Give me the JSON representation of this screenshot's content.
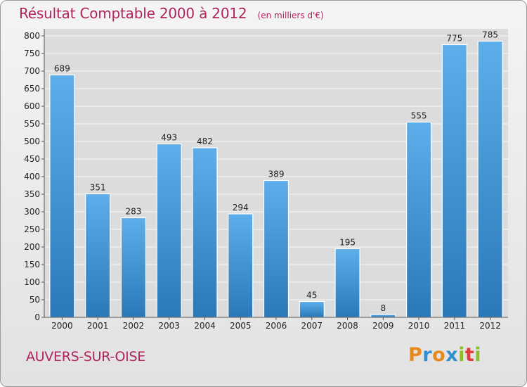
{
  "title": "Résultat Comptable 2000 à 2012",
  "subtitle": "(en milliers d'€)",
  "commune": "AUVERS-SUR-OISE",
  "logo": {
    "letters": [
      "P",
      "r",
      "o",
      "x",
      "i",
      "t",
      "i"
    ],
    "colors": [
      "#e8891c",
      "#2f8fcf",
      "#e8891c",
      "#2f8fcf",
      "#8cbf26",
      "#e03a3a",
      "#8cbf26"
    ]
  },
  "colors": {
    "bar_light": "#5daeea",
    "bar_dark": "#2a78b8",
    "title": "#b0245e"
  },
  "chart_data": {
    "type": "bar",
    "title": "Résultat Comptable 2000 à 2012",
    "categories": [
      "2000",
      "2001",
      "2002",
      "2003",
      "2004",
      "2005",
      "2006",
      "2007",
      "2008",
      "2009",
      "2010",
      "2011",
      "2012"
    ],
    "values": [
      689,
      351,
      283,
      493,
      482,
      294,
      389,
      45,
      195,
      8,
      555,
      775,
      785
    ],
    "ylim": [
      0,
      800
    ],
    "yticks": [
      0,
      50,
      100,
      150,
      200,
      250,
      300,
      350,
      400,
      450,
      500,
      550,
      600,
      650,
      700,
      750,
      800
    ],
    "grid": true
  }
}
